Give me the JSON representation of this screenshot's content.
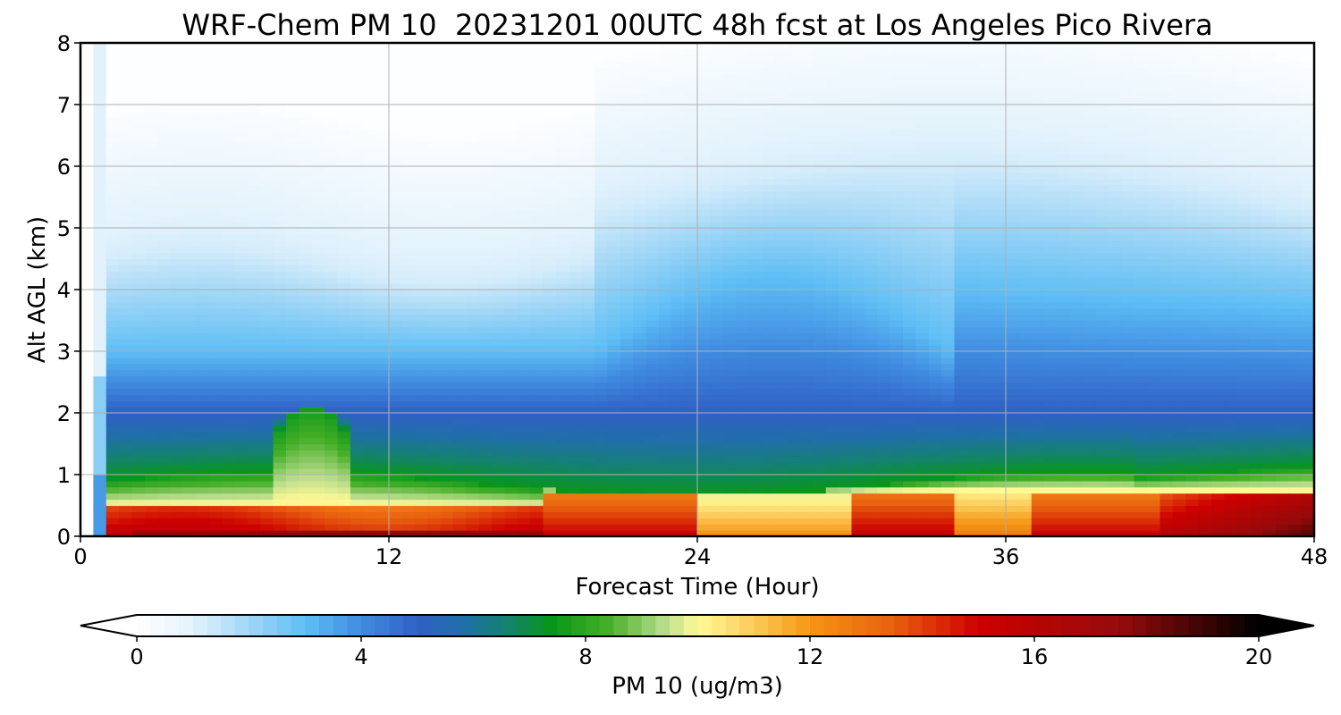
{
  "chart_data": {
    "type": "heatmap",
    "title": "WRF-Chem PM 10  20231201 00UTC 48h fcst at Los Angeles Pico Rivera",
    "xlabel": "Forecast Time (Hour)",
    "ylabel": "Alt AGL (km)",
    "xlim": [
      0,
      48
    ],
    "ylim": [
      0,
      8
    ],
    "x_ticks": [
      "0",
      "12",
      "24",
      "36",
      "48"
    ],
    "y_ticks": [
      "0",
      "1",
      "2",
      "3",
      "4",
      "5",
      "6",
      "7",
      "8"
    ],
    "grid": true,
    "x": [
      0,
      1,
      2,
      4,
      6,
      8,
      10,
      12,
      14,
      16,
      18,
      20,
      22,
      24,
      26,
      28,
      30,
      32,
      34,
      36,
      38,
      40,
      42,
      44,
      46,
      48
    ],
    "y": [
      0,
      0.1,
      0.2,
      0.3,
      0.5,
      0.7,
      0.9,
      1.1,
      1.4,
      1.7,
      2.0,
      2.5,
      3.0,
      3.5,
      4.0,
      4.5,
      5.0,
      6.0,
      7.0,
      8.0
    ],
    "colorbar": {
      "label": "PM 10  (ug/m3)",
      "ticks": [
        "0",
        "4",
        "8",
        "12",
        "16",
        "20"
      ],
      "range": [
        0,
        20
      ],
      "extend": "both"
    }
  }
}
